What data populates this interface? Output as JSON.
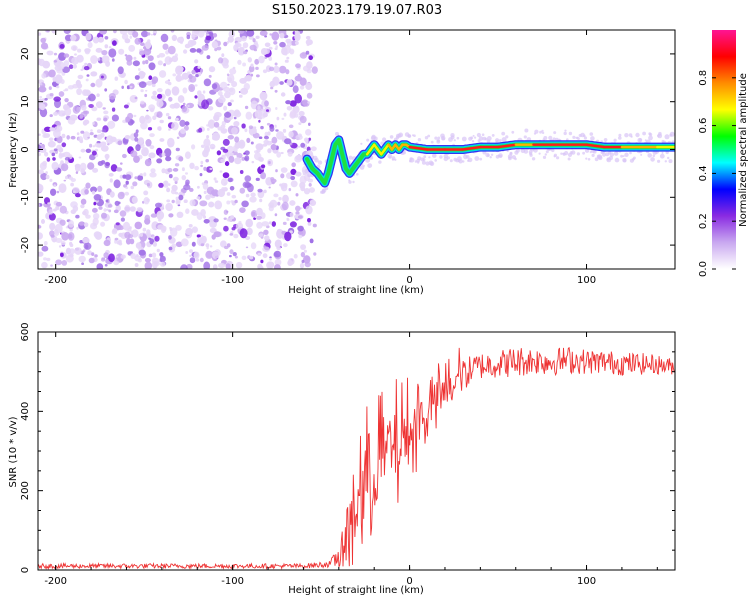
{
  "title": "S150.2023.179.19.07.R03",
  "chart_data": [
    {
      "type": "heatmap",
      "name": "spectrogram",
      "xlabel": "Height of straight line (km)",
      "ylabel": "Frequency (Hz)",
      "xlim": [
        -210,
        150
      ],
      "ylim": [
        -25,
        25
      ],
      "xticks": [
        -200,
        -100,
        0,
        100
      ],
      "yticks": [
        -20,
        -10,
        0,
        10,
        20
      ],
      "colorbar": {
        "label": "Normalized spectral amplitude",
        "range": [
          0,
          1
        ],
        "ticks": [
          "0.0",
          "0.2",
          "0.4",
          "0.6",
          "0.8"
        ],
        "colors": [
          "#ffffff",
          "#c9a8f0",
          "#8a2be2",
          "#0000ff",
          "#00ffff",
          "#00ff00",
          "#ffff00",
          "#ff8c00",
          "#ff0000",
          "#ff1493"
        ]
      },
      "ridge": {
        "x": [
          -58,
          -55,
          -52,
          -50,
          -48,
          -46,
          -44,
          -42,
          -40,
          -38,
          -36,
          -34,
          -32,
          -30,
          -28,
          -26,
          -24,
          -22,
          -20,
          -18,
          -16,
          -14,
          -12,
          -10,
          -8,
          -6,
          -4,
          -2,
          0,
          10,
          20,
          30,
          40,
          50,
          60,
          70,
          80,
          90,
          100,
          110,
          120,
          130,
          140,
          150
        ],
        "y": [
          -2,
          -4,
          -5,
          -6,
          -7,
          -5,
          -2,
          1,
          2,
          -1,
          -4,
          -5,
          -4,
          -3,
          -2,
          -1,
          -1,
          0,
          1,
          0,
          -1,
          0,
          1,
          0,
          1,
          0,
          1,
          1,
          0.5,
          0,
          0,
          0,
          0.5,
          0.5,
          1,
          1,
          1,
          1,
          1,
          0.5,
          0.5,
          0.5,
          0.5,
          0.5
        ],
        "amplitude": [
          0.3,
          0.4,
          0.5,
          0.5,
          0.45,
          0.4,
          0.4,
          0.45,
          0.5,
          0.45,
          0.4,
          0.45,
          0.5,
          0.55,
          0.55,
          0.6,
          0.6,
          0.65,
          0.7,
          0.7,
          0.65,
          0.7,
          0.7,
          0.75,
          0.7,
          0.75,
          0.8,
          0.8,
          0.8,
          0.9,
          0.9,
          0.8,
          0.85,
          0.9,
          0.8,
          0.8,
          0.85,
          0.85,
          0.9,
          0.9,
          0.8,
          0.75,
          0.7,
          0.7
        ]
      },
      "noise_region_x": [
        -210,
        -58
      ]
    },
    {
      "type": "line",
      "name": "snr",
      "xlabel": "Height of straight line (km)",
      "ylabel": "SNR (10 * v/v)",
      "xlim": [
        -210,
        150
      ],
      "ylim": [
        0,
        600
      ],
      "xticks": [
        -200,
        -100,
        0,
        100
      ],
      "yticks": [
        0,
        200,
        400,
        600
      ],
      "color": "#ee3333",
      "envelope": {
        "x": [
          -210,
          -60,
          -45,
          -38,
          -34,
          -30,
          -25,
          -20,
          -15,
          -10,
          -5,
          0,
          5,
          10,
          15,
          20,
          25,
          30,
          35,
          40,
          50,
          60,
          70,
          80,
          90,
          100,
          110,
          120,
          130,
          140,
          150
        ],
        "y": [
          10,
          10,
          15,
          40,
          100,
          180,
          220,
          260,
          290,
          300,
          320,
          340,
          380,
          400,
          430,
          450,
          470,
          490,
          505,
          515,
          520,
          525,
          528,
          525,
          530,
          525,
          525,
          520,
          520,
          518,
          512
        ],
        "spread": [
          6,
          6,
          8,
          40,
          80,
          120,
          120,
          110,
          100,
          90,
          80,
          70,
          60,
          50,
          45,
          40,
          40,
          40,
          38,
          35,
          35,
          40,
          35,
          35,
          35,
          32,
          30,
          30,
          28,
          25,
          20
        ]
      }
    }
  ]
}
